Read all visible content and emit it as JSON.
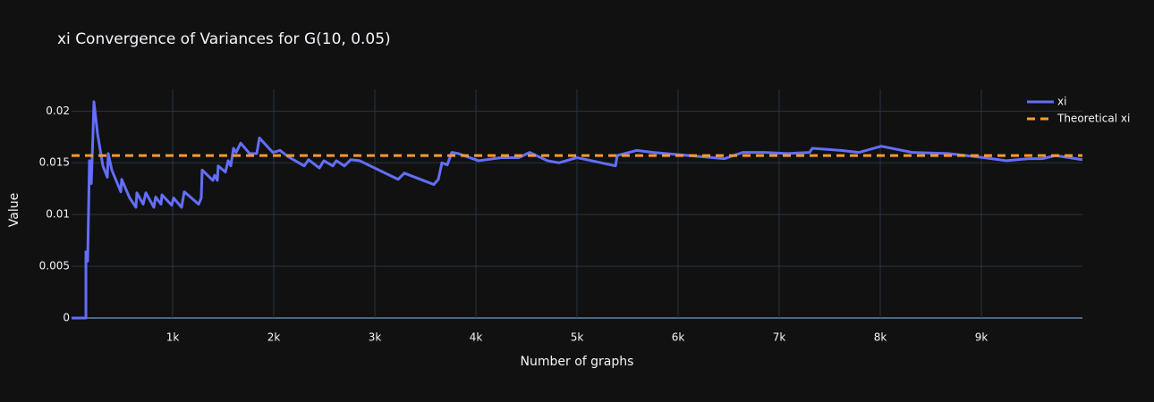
{
  "chart_data": {
    "type": "line",
    "title": "xi Convergence of Variances for G(10, 0.05)",
    "xlabel": "Number of graphs",
    "ylabel": "Value",
    "xlim": [
      0,
      10000
    ],
    "ylim": [
      0,
      0.0221
    ],
    "xticks": [
      {
        "value": 1000,
        "label": "1k"
      },
      {
        "value": 2000,
        "label": "2k"
      },
      {
        "value": 3000,
        "label": "3k"
      },
      {
        "value": 4000,
        "label": "4k"
      },
      {
        "value": 5000,
        "label": "5k"
      },
      {
        "value": 6000,
        "label": "6k"
      },
      {
        "value": 7000,
        "label": "7k"
      },
      {
        "value": 8000,
        "label": "8k"
      },
      {
        "value": 9000,
        "label": "9k"
      }
    ],
    "yticks": [
      0,
      0.005,
      0.01,
      0.015,
      0.02
    ],
    "grid": true,
    "legend": "top-right",
    "series": [
      {
        "name": "xi",
        "color": "#636efa",
        "dash": false,
        "x": [
          0,
          142,
          142,
          159,
          177,
          195,
          212,
          221,
          257,
          310,
          354,
          363,
          398,
          487,
          496,
          575,
          637,
          646,
          708,
          735,
          814,
          832,
          885,
          894,
          991,
          1009,
          1088,
          1115,
          1257,
          1283,
          1292,
          1398,
          1416,
          1442,
          1451,
          1522,
          1549,
          1575,
          1602,
          1628,
          1673,
          1761,
          1832,
          1858,
          1991,
          2062,
          2142,
          2301,
          2345,
          2451,
          2496,
          2584,
          2619,
          2699,
          2761,
          2850,
          3230,
          3292,
          3584,
          3628,
          3664,
          3717,
          3761,
          3823,
          4027,
          4248,
          4425,
          4531,
          4708,
          4823,
          5000,
          5381,
          5398,
          5593,
          5752,
          6106,
          6460,
          6637,
          6858,
          7080,
          7301,
          7327,
          7611,
          7788,
          8009,
          8319,
          8673,
          9027,
          9248,
          9469,
          9602,
          9735,
          10000
        ],
        "values": [
          0,
          0,
          0.0064,
          0.0055,
          0.0152,
          0.013,
          0.0178,
          0.0209,
          0.0178,
          0.0147,
          0.0136,
          0.0159,
          0.0143,
          0.0122,
          0.0134,
          0.0116,
          0.0107,
          0.0121,
          0.011,
          0.0121,
          0.0107,
          0.0117,
          0.011,
          0.0119,
          0.0109,
          0.0116,
          0.0107,
          0.0122,
          0.011,
          0.0116,
          0.0143,
          0.0133,
          0.0138,
          0.0133,
          0.0147,
          0.0141,
          0.0152,
          0.0147,
          0.0164,
          0.016,
          0.0169,
          0.0159,
          0.0159,
          0.0174,
          0.016,
          0.0162,
          0.0156,
          0.0147,
          0.0153,
          0.0145,
          0.0152,
          0.0147,
          0.0152,
          0.0147,
          0.0153,
          0.0152,
          0.0134,
          0.014,
          0.0129,
          0.0134,
          0.015,
          0.0148,
          0.016,
          0.0159,
          0.0152,
          0.0155,
          0.0155,
          0.016,
          0.0152,
          0.015,
          0.0155,
          0.0147,
          0.0157,
          0.0162,
          0.016,
          0.0157,
          0.0154,
          0.016,
          0.016,
          0.0159,
          0.016,
          0.0164,
          0.0162,
          0.016,
          0.0166,
          0.016,
          0.0159,
          0.0155,
          0.0152,
          0.0154,
          0.0154,
          0.0157,
          0.0153
        ]
      },
      {
        "name": "Theoretical xi",
        "color": "#ff9a2e",
        "dash": true,
        "x": [
          0,
          10000
        ],
        "values": [
          0.0157,
          0.0157
        ]
      }
    ]
  }
}
